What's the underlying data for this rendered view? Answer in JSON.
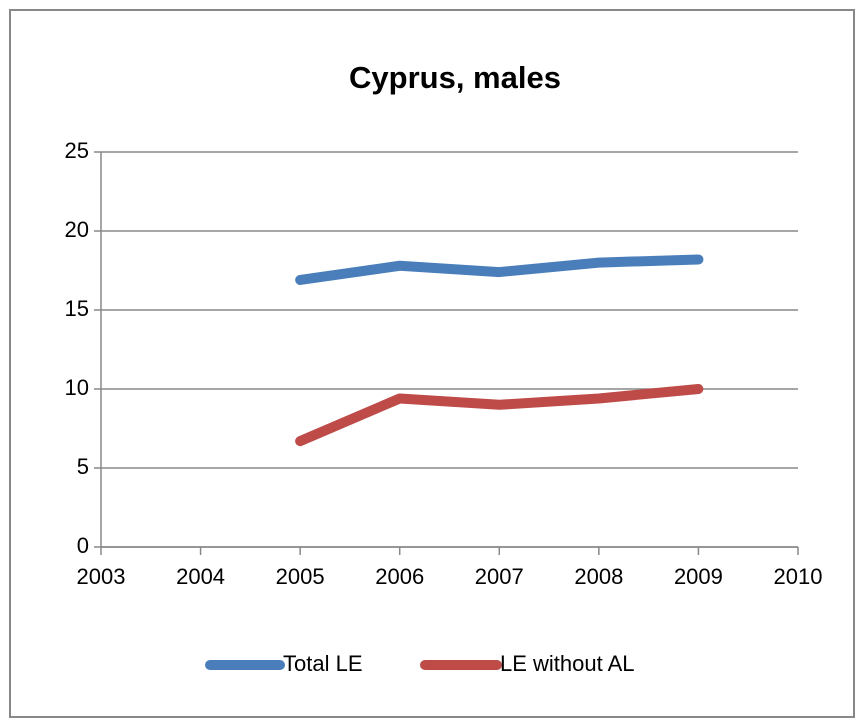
{
  "chart_data": {
    "type": "line",
    "title": "Cyprus, males",
    "x": [
      2005,
      2006,
      2007,
      2008,
      2009
    ],
    "series": [
      {
        "name": "Total LE",
        "color": "#4a7ebb",
        "values": [
          16.9,
          17.8,
          17.4,
          18.0,
          18.2
        ]
      },
      {
        "name": "LE without AL",
        "color": "#be4b48",
        "values": [
          6.7,
          9.4,
          9.0,
          9.4,
          10.0
        ]
      }
    ],
    "xlim": [
      2003,
      2010
    ],
    "xticks": [
      2003,
      2004,
      2005,
      2006,
      2007,
      2008,
      2009,
      2010
    ],
    "ylim": [
      0,
      25
    ],
    "yticks": [
      0,
      5,
      10,
      15,
      20,
      25
    ],
    "grid": true,
    "legend": "bottom"
  }
}
